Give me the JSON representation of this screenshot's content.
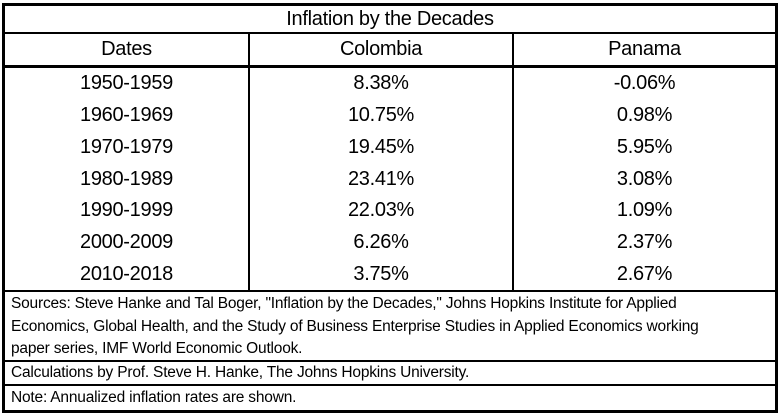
{
  "chart_data": {
    "type": "table",
    "title": "Inflation by the Decades",
    "columns": [
      "Dates",
      "Colombia",
      "Panama"
    ],
    "rows": [
      {
        "dates": "1950-1959",
        "colombia": "8.38%",
        "panama": "-0.06%"
      },
      {
        "dates": "1960-1969",
        "colombia": "10.75%",
        "panama": "0.98%"
      },
      {
        "dates": "1970-1979",
        "colombia": "19.45%",
        "panama": "5.95%"
      },
      {
        "dates": "1980-1989",
        "colombia": "23.41%",
        "panama": "3.08%"
      },
      {
        "dates": "1990-1999",
        "colombia": "22.03%",
        "panama": "1.09%"
      },
      {
        "dates": "2000-2009",
        "colombia": "6.26%",
        "panama": "2.37%"
      },
      {
        "dates": "2010-2018",
        "colombia": "3.75%",
        "panama": "2.67%"
      }
    ],
    "notes": {
      "sources_lines": [
        "Sources: Steve Hanke and Tal Boger, \"Inflation by the Decades,\" Johns Hopkins Institute for Applied",
        "Economics, Global Health, and the Study of Business Enterprise Studies in Applied Economics working",
        "paper series, IMF World Economic Outlook."
      ],
      "calculations": "Calculations by Prof. Steve H. Hanke, The Johns Hopkins University.",
      "note": "Note: Annualized inflation rates are shown."
    },
    "layout": {
      "legend": "none",
      "grid": "table-borders"
    }
  },
  "colors": {
    "border": "#000000",
    "background": "#ffffff",
    "text": "#000000"
  }
}
